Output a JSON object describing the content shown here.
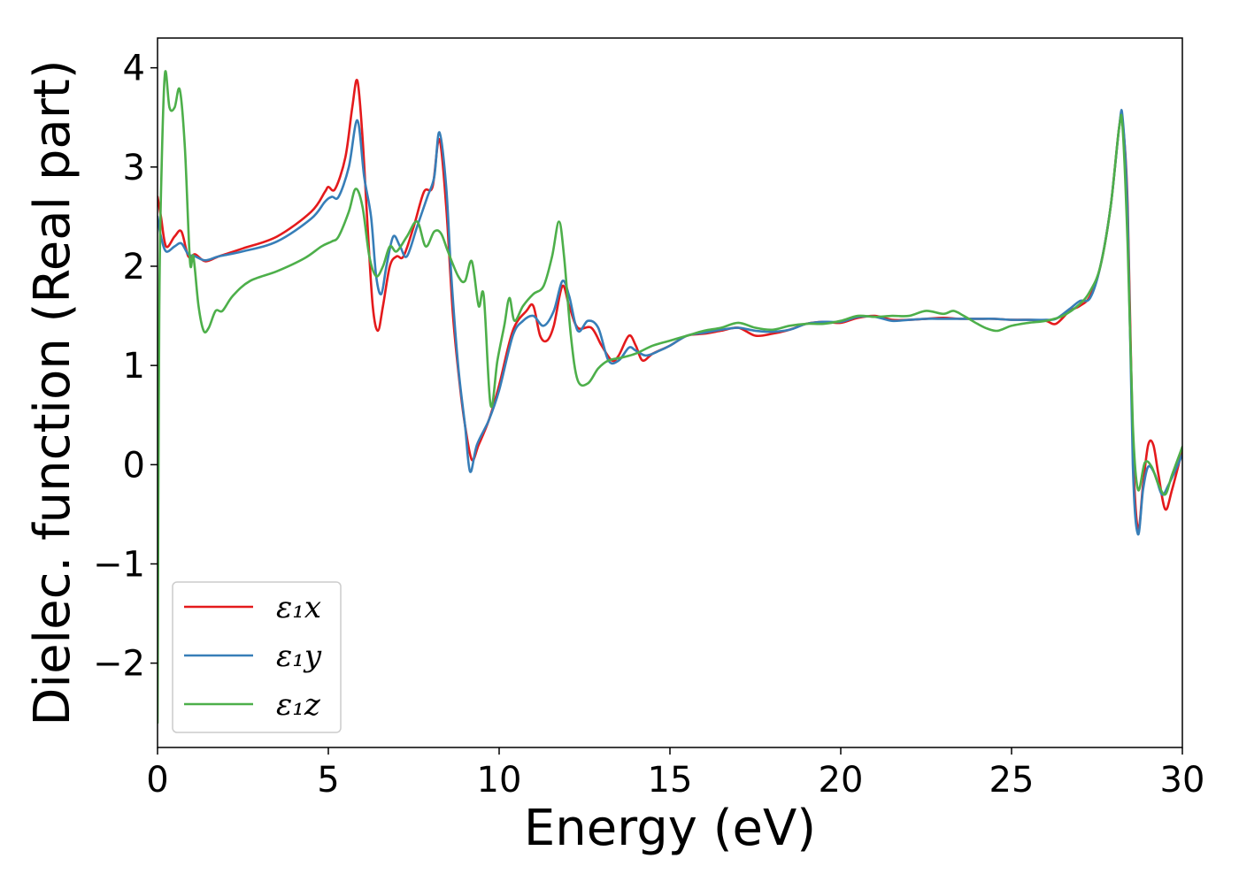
{
  "chart_data": {
    "type": "line",
    "title": "",
    "xlabel": "Energy (eV)",
    "ylabel": "Dielec. function (Real part)",
    "xlim": [
      0,
      30
    ],
    "ylim": [
      -2.85,
      4.3
    ],
    "xticks": [
      0,
      5,
      10,
      15,
      20,
      25,
      30
    ],
    "xtick_labels": [
      "0",
      "5",
      "10",
      "15",
      "20",
      "25",
      "30"
    ],
    "yticks": [
      -2,
      -1,
      0,
      1,
      2,
      3,
      4
    ],
    "ytick_labels": [
      "−2",
      "−1",
      "0",
      "1",
      "2",
      "3",
      "4"
    ],
    "grid": false,
    "legend_position": "lower-left",
    "series": [
      {
        "name": "ε₁x",
        "color": "#e41a1c",
        "points": [
          [
            0,
            2.7
          ],
          [
            0.1,
            2.5
          ],
          [
            0.25,
            2.2
          ],
          [
            0.5,
            2.3
          ],
          [
            0.7,
            2.35
          ],
          [
            0.9,
            2.1
          ],
          [
            1.1,
            2.12
          ],
          [
            1.4,
            2.05
          ],
          [
            1.8,
            2.1
          ],
          [
            2.5,
            2.18
          ],
          [
            3.5,
            2.3
          ],
          [
            4.5,
            2.55
          ],
          [
            4.9,
            2.75
          ],
          [
            5.0,
            2.8
          ],
          [
            5.2,
            2.78
          ],
          [
            5.5,
            3.1
          ],
          [
            5.7,
            3.6
          ],
          [
            5.85,
            3.87
          ],
          [
            6.0,
            3.3
          ],
          [
            6.15,
            2.4
          ],
          [
            6.3,
            1.6
          ],
          [
            6.45,
            1.35
          ],
          [
            6.6,
            1.6
          ],
          [
            6.8,
            2.0
          ],
          [
            7.0,
            2.1
          ],
          [
            7.2,
            2.1
          ],
          [
            7.5,
            2.4
          ],
          [
            7.8,
            2.75
          ],
          [
            8.05,
            2.8
          ],
          [
            8.25,
            3.28
          ],
          [
            8.45,
            2.6
          ],
          [
            8.65,
            1.5
          ],
          [
            8.85,
            0.8
          ],
          [
            9.0,
            0.4
          ],
          [
            9.2,
            0.05
          ],
          [
            9.4,
            0.2
          ],
          [
            9.7,
            0.45
          ],
          [
            10.0,
            0.8
          ],
          [
            10.4,
            1.35
          ],
          [
            10.8,
            1.55
          ],
          [
            11.0,
            1.6
          ],
          [
            11.2,
            1.3
          ],
          [
            11.4,
            1.25
          ],
          [
            11.6,
            1.4
          ],
          [
            11.85,
            1.8
          ],
          [
            12.05,
            1.6
          ],
          [
            12.3,
            1.38
          ],
          [
            12.7,
            1.38
          ],
          [
            13.0,
            1.2
          ],
          [
            13.3,
            1.05
          ],
          [
            13.5,
            1.1
          ],
          [
            13.8,
            1.3
          ],
          [
            14.0,
            1.2
          ],
          [
            14.2,
            1.05
          ],
          [
            14.5,
            1.12
          ],
          [
            15.0,
            1.2
          ],
          [
            15.5,
            1.3
          ],
          [
            16.0,
            1.32
          ],
          [
            16.5,
            1.35
          ],
          [
            17.0,
            1.38
          ],
          [
            17.5,
            1.3
          ],
          [
            18.0,
            1.32
          ],
          [
            18.5,
            1.36
          ],
          [
            19.0,
            1.42
          ],
          [
            19.5,
            1.44
          ],
          [
            20.0,
            1.43
          ],
          [
            20.5,
            1.48
          ],
          [
            21.0,
            1.5
          ],
          [
            21.5,
            1.46
          ],
          [
            22.0,
            1.46
          ],
          [
            22.5,
            1.47
          ],
          [
            23.0,
            1.48
          ],
          [
            23.5,
            1.47
          ],
          [
            24.0,
            1.47
          ],
          [
            24.5,
            1.47
          ],
          [
            25.0,
            1.46
          ],
          [
            25.5,
            1.46
          ],
          [
            26.0,
            1.45
          ],
          [
            26.3,
            1.42
          ],
          [
            26.7,
            1.55
          ],
          [
            27.0,
            1.6
          ],
          [
            27.3,
            1.7
          ],
          [
            27.6,
            2.0
          ],
          [
            27.9,
            2.6
          ],
          [
            28.15,
            3.4
          ],
          [
            28.25,
            3.45
          ],
          [
            28.4,
            2.6
          ],
          [
            28.55,
            0.2
          ],
          [
            28.7,
            -0.65
          ],
          [
            28.85,
            -0.2
          ],
          [
            29.0,
            0.2
          ],
          [
            29.15,
            0.2
          ],
          [
            29.3,
            -0.1
          ],
          [
            29.5,
            -0.45
          ],
          [
            29.7,
            -0.25
          ],
          [
            30.0,
            0.15
          ]
        ]
      },
      {
        "name": "ε₁y",
        "color": "#377eb8",
        "points": [
          [
            0,
            2.5
          ],
          [
            0.1,
            2.3
          ],
          [
            0.25,
            2.15
          ],
          [
            0.5,
            2.2
          ],
          [
            0.7,
            2.23
          ],
          [
            0.9,
            2.12
          ],
          [
            1.1,
            2.1
          ],
          [
            1.4,
            2.06
          ],
          [
            1.8,
            2.1
          ],
          [
            2.5,
            2.15
          ],
          [
            3.5,
            2.25
          ],
          [
            4.5,
            2.48
          ],
          [
            4.9,
            2.65
          ],
          [
            5.1,
            2.7
          ],
          [
            5.3,
            2.7
          ],
          [
            5.6,
            3.0
          ],
          [
            5.85,
            3.47
          ],
          [
            6.05,
            2.9
          ],
          [
            6.25,
            2.5
          ],
          [
            6.4,
            1.9
          ],
          [
            6.55,
            1.72
          ],
          [
            6.7,
            2.0
          ],
          [
            6.9,
            2.3
          ],
          [
            7.1,
            2.2
          ],
          [
            7.3,
            2.1
          ],
          [
            7.6,
            2.4
          ],
          [
            7.9,
            2.7
          ],
          [
            8.1,
            2.9
          ],
          [
            8.25,
            3.35
          ],
          [
            8.45,
            2.8
          ],
          [
            8.6,
            1.9
          ],
          [
            8.8,
            1.0
          ],
          [
            9.0,
            0.4
          ],
          [
            9.15,
            -0.07
          ],
          [
            9.35,
            0.2
          ],
          [
            9.7,
            0.45
          ],
          [
            10.0,
            0.75
          ],
          [
            10.4,
            1.3
          ],
          [
            10.7,
            1.45
          ],
          [
            11.0,
            1.5
          ],
          [
            11.3,
            1.4
          ],
          [
            11.6,
            1.55
          ],
          [
            11.85,
            1.85
          ],
          [
            12.05,
            1.7
          ],
          [
            12.3,
            1.35
          ],
          [
            12.6,
            1.45
          ],
          [
            12.9,
            1.38
          ],
          [
            13.2,
            1.05
          ],
          [
            13.5,
            1.05
          ],
          [
            13.8,
            1.18
          ],
          [
            14.0,
            1.15
          ],
          [
            14.3,
            1.1
          ],
          [
            14.7,
            1.15
          ],
          [
            15.0,
            1.2
          ],
          [
            15.5,
            1.3
          ],
          [
            16.0,
            1.33
          ],
          [
            16.5,
            1.36
          ],
          [
            17.0,
            1.38
          ],
          [
            17.5,
            1.35
          ],
          [
            18.0,
            1.34
          ],
          [
            18.5,
            1.36
          ],
          [
            19.0,
            1.42
          ],
          [
            19.5,
            1.44
          ],
          [
            20.0,
            1.44
          ],
          [
            20.5,
            1.49
          ],
          [
            21.0,
            1.49
          ],
          [
            21.5,
            1.45
          ],
          [
            22.0,
            1.46
          ],
          [
            22.5,
            1.47
          ],
          [
            23.0,
            1.47
          ],
          [
            23.5,
            1.47
          ],
          [
            24.0,
            1.47
          ],
          [
            24.5,
            1.47
          ],
          [
            25.0,
            1.46
          ],
          [
            25.5,
            1.46
          ],
          [
            26.0,
            1.46
          ],
          [
            26.3,
            1.47
          ],
          [
            26.7,
            1.57
          ],
          [
            27.0,
            1.65
          ],
          [
            27.3,
            1.68
          ],
          [
            27.6,
            2.0
          ],
          [
            27.9,
            2.6
          ],
          [
            28.15,
            3.4
          ],
          [
            28.25,
            3.5
          ],
          [
            28.4,
            2.5
          ],
          [
            28.55,
            0.0
          ],
          [
            28.7,
            -0.7
          ],
          [
            28.85,
            -0.25
          ],
          [
            29.0,
            -0.02
          ],
          [
            29.2,
            -0.1
          ],
          [
            29.4,
            -0.3
          ],
          [
            29.6,
            -0.2
          ],
          [
            30.0,
            0.1
          ]
        ]
      },
      {
        "name": "ε₁z",
        "color": "#4daf4a",
        "points": [
          [
            0,
            -2.6
          ],
          [
            0.05,
            1.5
          ],
          [
            0.12,
            3.0
          ],
          [
            0.22,
            3.95
          ],
          [
            0.35,
            3.6
          ],
          [
            0.5,
            3.6
          ],
          [
            0.65,
            3.78
          ],
          [
            0.8,
            3.2
          ],
          [
            0.95,
            2.05
          ],
          [
            1.05,
            2.1
          ],
          [
            1.2,
            1.6
          ],
          [
            1.35,
            1.35
          ],
          [
            1.5,
            1.38
          ],
          [
            1.7,
            1.55
          ],
          [
            1.9,
            1.55
          ],
          [
            2.2,
            1.7
          ],
          [
            2.7,
            1.85
          ],
          [
            3.5,
            1.95
          ],
          [
            4.3,
            2.08
          ],
          [
            4.8,
            2.2
          ],
          [
            5.1,
            2.25
          ],
          [
            5.3,
            2.3
          ],
          [
            5.6,
            2.55
          ],
          [
            5.8,
            2.78
          ],
          [
            6.0,
            2.6
          ],
          [
            6.2,
            2.1
          ],
          [
            6.4,
            1.9
          ],
          [
            6.6,
            2.0
          ],
          [
            6.8,
            2.2
          ],
          [
            7.0,
            2.15
          ],
          [
            7.3,
            2.3
          ],
          [
            7.6,
            2.45
          ],
          [
            7.85,
            2.2
          ],
          [
            8.1,
            2.35
          ],
          [
            8.3,
            2.33
          ],
          [
            8.5,
            2.15
          ],
          [
            8.8,
            1.9
          ],
          [
            9.0,
            1.85
          ],
          [
            9.2,
            2.05
          ],
          [
            9.4,
            1.6
          ],
          [
            9.55,
            1.7
          ],
          [
            9.75,
            0.6
          ],
          [
            9.95,
            1.05
          ],
          [
            10.15,
            1.4
          ],
          [
            10.3,
            1.68
          ],
          [
            10.45,
            1.45
          ],
          [
            10.7,
            1.6
          ],
          [
            11.0,
            1.72
          ],
          [
            11.3,
            1.8
          ],
          [
            11.55,
            2.1
          ],
          [
            11.75,
            2.45
          ],
          [
            11.9,
            2.1
          ],
          [
            12.1,
            1.3
          ],
          [
            12.3,
            0.85
          ],
          [
            12.6,
            0.82
          ],
          [
            12.9,
            0.97
          ],
          [
            13.2,
            1.05
          ],
          [
            13.6,
            1.08
          ],
          [
            14.0,
            1.12
          ],
          [
            14.5,
            1.2
          ],
          [
            15.0,
            1.25
          ],
          [
            15.5,
            1.3
          ],
          [
            16.0,
            1.35
          ],
          [
            16.5,
            1.38
          ],
          [
            17.0,
            1.43
          ],
          [
            17.5,
            1.38
          ],
          [
            18.0,
            1.36
          ],
          [
            18.5,
            1.4
          ],
          [
            19.0,
            1.42
          ],
          [
            19.5,
            1.42
          ],
          [
            20.0,
            1.45
          ],
          [
            20.5,
            1.5
          ],
          [
            21.0,
            1.49
          ],
          [
            21.5,
            1.5
          ],
          [
            22.0,
            1.5
          ],
          [
            22.5,
            1.55
          ],
          [
            23.0,
            1.52
          ],
          [
            23.3,
            1.55
          ],
          [
            23.6,
            1.5
          ],
          [
            24.0,
            1.42
          ],
          [
            24.3,
            1.37
          ],
          [
            24.6,
            1.35
          ],
          [
            25.0,
            1.4
          ],
          [
            25.5,
            1.43
          ],
          [
            26.0,
            1.45
          ],
          [
            26.5,
            1.5
          ],
          [
            27.0,
            1.62
          ],
          [
            27.3,
            1.75
          ],
          [
            27.6,
            2.0
          ],
          [
            27.9,
            2.6
          ],
          [
            28.15,
            3.4
          ],
          [
            28.25,
            3.4
          ],
          [
            28.4,
            2.2
          ],
          [
            28.55,
            0.4
          ],
          [
            28.7,
            -0.25
          ],
          [
            28.9,
            0.02
          ],
          [
            29.1,
            -0.02
          ],
          [
            29.3,
            -0.2
          ],
          [
            29.5,
            -0.3
          ],
          [
            29.7,
            -0.1
          ],
          [
            30.0,
            0.18
          ]
        ]
      }
    ]
  }
}
